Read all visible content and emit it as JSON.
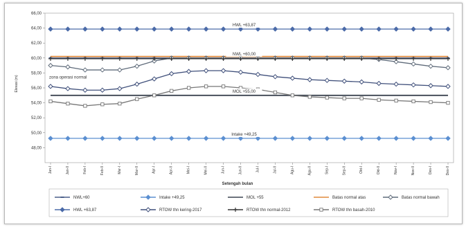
{
  "chart_data": {
    "type": "line",
    "title": "",
    "xlabel": "Setengah bulan",
    "ylabel": "Elevasi (m)",
    "ylim": [
      46,
      66
    ],
    "grid": false,
    "legend_position": "bottom",
    "y_ticks": [
      {
        "value": 66,
        "label": "66,00"
      },
      {
        "value": 64,
        "label": "64,00"
      },
      {
        "value": 62,
        "label": "62,00"
      },
      {
        "value": 60,
        "label": "60,00"
      },
      {
        "value": 58,
        "label": "58,00"
      },
      {
        "value": 56,
        "label": "56,00"
      },
      {
        "value": 54,
        "label": "54,00"
      },
      {
        "value": 52,
        "label": "52,00"
      },
      {
        "value": 50,
        "label": "50,00"
      },
      {
        "value": 48,
        "label": "48,00"
      }
    ],
    "categories": [
      "Jan-I",
      "Jan-II",
      "Feb-I",
      "Feb-II",
      "Mar-I",
      "Mar-II",
      "Apr-I",
      "Apr-II",
      "Mei-I",
      "Mei-II",
      "Jun-I",
      "Jun-II",
      "Jul-I",
      "Jul-II",
      "Agu-I",
      "Agu-II",
      "Sep-I",
      "Sep-II",
      "Okt-I",
      "Okt-II",
      "Nov-I",
      "Nov-II",
      "Des-I",
      "Des-II"
    ],
    "annotations": [
      {
        "text": "HWL +63,87",
        "x_index": 11,
        "y": 63.87
      },
      {
        "text": "NWL +60,00",
        "x_index": 11,
        "y": 60.0
      },
      {
        "text": "zona operasi normal",
        "x_index": 0,
        "y": 56.9
      },
      {
        "text": "MOL +55,00",
        "x_index": 11,
        "y": 55.0
      },
      {
        "text": "Intake +49,25",
        "x_index": 11,
        "y": 49.25
      }
    ],
    "series": [
      {
        "name": "NWL+60",
        "color": "#4a5f8a",
        "marker": "dash",
        "values": [
          60,
          60,
          60,
          60,
          60,
          60,
          60,
          60,
          60,
          60,
          60,
          60,
          60,
          60,
          60,
          60,
          60,
          60,
          60,
          60,
          60,
          60,
          60,
          60
        ]
      },
      {
        "name": "Intake +49,25",
        "color": "#5b8fd1",
        "marker": "diamond",
        "values": [
          49.25,
          49.25,
          49.25,
          49.25,
          49.25,
          49.25,
          49.25,
          49.25,
          49.25,
          49.25,
          49.25,
          49.25,
          49.25,
          49.25,
          49.25,
          49.25,
          49.25,
          49.25,
          49.25,
          49.25,
          49.25,
          49.25,
          49.25,
          49.25
        ]
      },
      {
        "name": "MOL +55",
        "color": "#3c4450",
        "marker": "none",
        "values": [
          55,
          55,
          55,
          55,
          55,
          55,
          55,
          55,
          55,
          55,
          55,
          55,
          55,
          55,
          55,
          55,
          55,
          55,
          55,
          55,
          55,
          55,
          55,
          55
        ]
      },
      {
        "name": "Batas normal atas",
        "color": "#e08a3c",
        "marker": "none",
        "values": [
          60.2,
          60.2,
          60.2,
          60.2,
          60.2,
          60.2,
          60.2,
          60.2,
          60.2,
          60.2,
          60.2,
          60.2,
          60.2,
          60.2,
          60.2,
          60.2,
          60.2,
          60.2,
          60.2,
          60.2,
          60.2,
          60.2,
          60.2,
          60.2
        ]
      },
      {
        "name": "Batas normal bawah",
        "color": "#5f6b7a",
        "marker": "diamond-open",
        "values": [
          59.0,
          58.8,
          58.4,
          58.4,
          58.4,
          58.9,
          59.6,
          60.0,
          60.0,
          60.0,
          60.0,
          60.0,
          60.0,
          60.0,
          60.0,
          60.0,
          60.0,
          60.0,
          60.0,
          59.8,
          59.5,
          59.2,
          58.9,
          58.7
        ]
      },
      {
        "name": "HWL +63,87",
        "color": "#4a6aa8",
        "marker": "diamond",
        "values": [
          63.87,
          63.87,
          63.87,
          63.87,
          63.87,
          63.87,
          63.87,
          63.87,
          63.87,
          63.87,
          63.87,
          63.87,
          63.87,
          63.87,
          63.87,
          63.87,
          63.87,
          63.87,
          63.87,
          63.87,
          63.87,
          63.87,
          63.87,
          63.87
        ]
      },
      {
        "name": "RTOW thn kering-2017",
        "color": "#3f4f7a",
        "marker": "diamond-open",
        "values": [
          56.2,
          55.9,
          55.7,
          55.7,
          55.9,
          56.5,
          57.2,
          57.9,
          58.2,
          58.3,
          58.3,
          58.1,
          57.8,
          57.5,
          57.3,
          57.1,
          57.0,
          56.9,
          56.8,
          56.6,
          56.5,
          56.4,
          56.3,
          56.2
        ]
      },
      {
        "name": "RTOW thn normal-2012",
        "color": "#333333",
        "marker": "plus",
        "values": [
          59.9,
          59.9,
          59.9,
          59.9,
          59.9,
          59.9,
          59.9,
          59.9,
          59.9,
          59.9,
          59.9,
          59.9,
          59.9,
          59.9,
          59.9,
          59.9,
          59.9,
          59.9,
          59.9,
          59.9,
          59.9,
          59.9,
          59.9,
          59.9
        ]
      },
      {
        "name": "RTOW thn basah-2010",
        "color": "#777777",
        "marker": "square-open",
        "values": [
          54.2,
          53.9,
          53.6,
          53.8,
          53.9,
          54.5,
          55.0,
          55.6,
          56.0,
          56.2,
          56.2,
          56.0,
          55.8,
          55.4,
          55.0,
          54.8,
          54.7,
          54.6,
          54.6,
          54.4,
          54.3,
          54.2,
          54.1,
          54.0
        ]
      }
    ]
  }
}
